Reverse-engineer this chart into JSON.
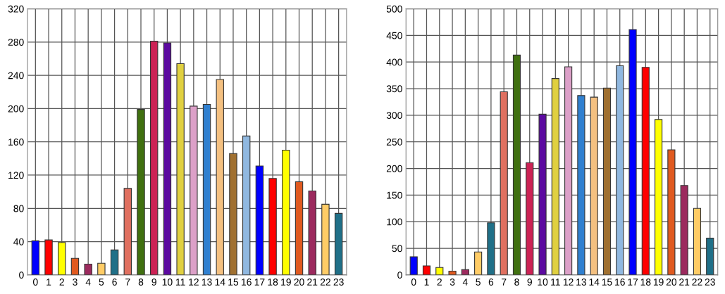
{
  "chart_data": [
    {
      "type": "bar",
      "categories": [
        "0",
        "1",
        "2",
        "3",
        "4",
        "5",
        "6",
        "7",
        "8",
        "9",
        "10",
        "11",
        "12",
        "13",
        "14",
        "15",
        "16",
        "17",
        "18",
        "19",
        "20",
        "21",
        "22",
        "23"
      ],
      "values": [
        41,
        42,
        39,
        20,
        13,
        14,
        30,
        104,
        199,
        281,
        279,
        254,
        203,
        205,
        235,
        146,
        167,
        131,
        116,
        150,
        112,
        101,
        85,
        74
      ],
      "colors": [
        "#0000ff",
        "#ff0000",
        "#ffff00",
        "#e05a20",
        "#9c2a5e",
        "#ffcc66",
        "#207088",
        "#e07060",
        "#407010",
        "#cc2255",
        "#5c0aa0",
        "#e0d040",
        "#dca0c8",
        "#3080d0",
        "#f4c080",
        "#a07030",
        "#90b8e0",
        "#0000ff",
        "#ff0000",
        "#ffff00",
        "#e05a20",
        "#9c2a5e",
        "#ffcc66",
        "#207088"
      ],
      "ylim": [
        0,
        320
      ],
      "yticks": [
        0,
        40,
        80,
        120,
        160,
        200,
        240,
        280,
        320
      ],
      "grid": true
    },
    {
      "type": "bar",
      "categories": [
        "0",
        "1",
        "2",
        "3",
        "4",
        "5",
        "6",
        "7",
        "8",
        "9",
        "10",
        "11",
        "12",
        "13",
        "14",
        "15",
        "16",
        "17",
        "18",
        "19",
        "20",
        "21",
        "22",
        "23"
      ],
      "values": [
        34,
        17,
        14,
        7,
        10,
        43,
        98,
        344,
        413,
        211,
        302,
        369,
        391,
        337,
        334,
        351,
        393,
        461,
        390,
        292,
        235,
        168,
        125,
        69
      ],
      "colors": [
        "#0000ff",
        "#ff0000",
        "#ffff00",
        "#e05a20",
        "#9c2a5e",
        "#ffcc66",
        "#207088",
        "#e07060",
        "#407010",
        "#cc2255",
        "#5c0aa0",
        "#e0d040",
        "#dca0c8",
        "#3080d0",
        "#f4c080",
        "#a07030",
        "#90b8e0",
        "#0000ff",
        "#ff0000",
        "#ffff00",
        "#e05a20",
        "#9c2a5e",
        "#ffcc66",
        "#207088"
      ],
      "ylim": [
        0,
        500
      ],
      "yticks": [
        0,
        50,
        100,
        150,
        200,
        250,
        300,
        350,
        400,
        450,
        500
      ],
      "grid": true
    }
  ]
}
